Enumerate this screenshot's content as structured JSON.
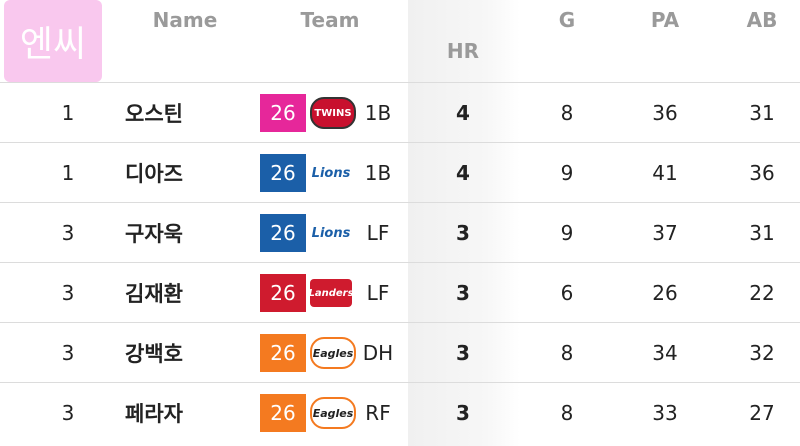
{
  "badge": "엔씨",
  "header": {
    "name": "Name",
    "team": "Team",
    "hr": "HR",
    "g": "G",
    "pa": "PA",
    "ab": "AB"
  },
  "rows": [
    {
      "rank": 1,
      "name": "오스틴",
      "number": 26,
      "team_logo": "TWINS",
      "color": "#e6279a",
      "position": "1B",
      "hr": 4,
      "g": 8,
      "pa": 36,
      "ab": 31
    },
    {
      "rank": 1,
      "name": "디아즈",
      "number": 26,
      "team_logo": "Lions",
      "color": "#1b5fa8",
      "position": "1B",
      "hr": 4,
      "g": 9,
      "pa": 41,
      "ab": 36
    },
    {
      "rank": 3,
      "name": "구자욱",
      "number": 26,
      "team_logo": "Lions",
      "color": "#1b5fa8",
      "position": "LF",
      "hr": 3,
      "g": 9,
      "pa": 37,
      "ab": 31
    },
    {
      "rank": 3,
      "name": "김재환",
      "number": 26,
      "team_logo": "Landers",
      "color": "#cf1b2e",
      "position": "LF",
      "hr": 3,
      "g": 6,
      "pa": 26,
      "ab": 22
    },
    {
      "rank": 3,
      "name": "강백호",
      "number": 26,
      "team_logo": "Eagles",
      "color": "#f47a20",
      "position": "DH",
      "hr": 3,
      "g": 8,
      "pa": 34,
      "ab": 32
    },
    {
      "rank": 3,
      "name": "페라자",
      "number": 26,
      "team_logo": "Eagles",
      "color": "#f47a20",
      "position": "RF",
      "hr": 3,
      "g": 8,
      "pa": 33,
      "ab": 27
    }
  ]
}
